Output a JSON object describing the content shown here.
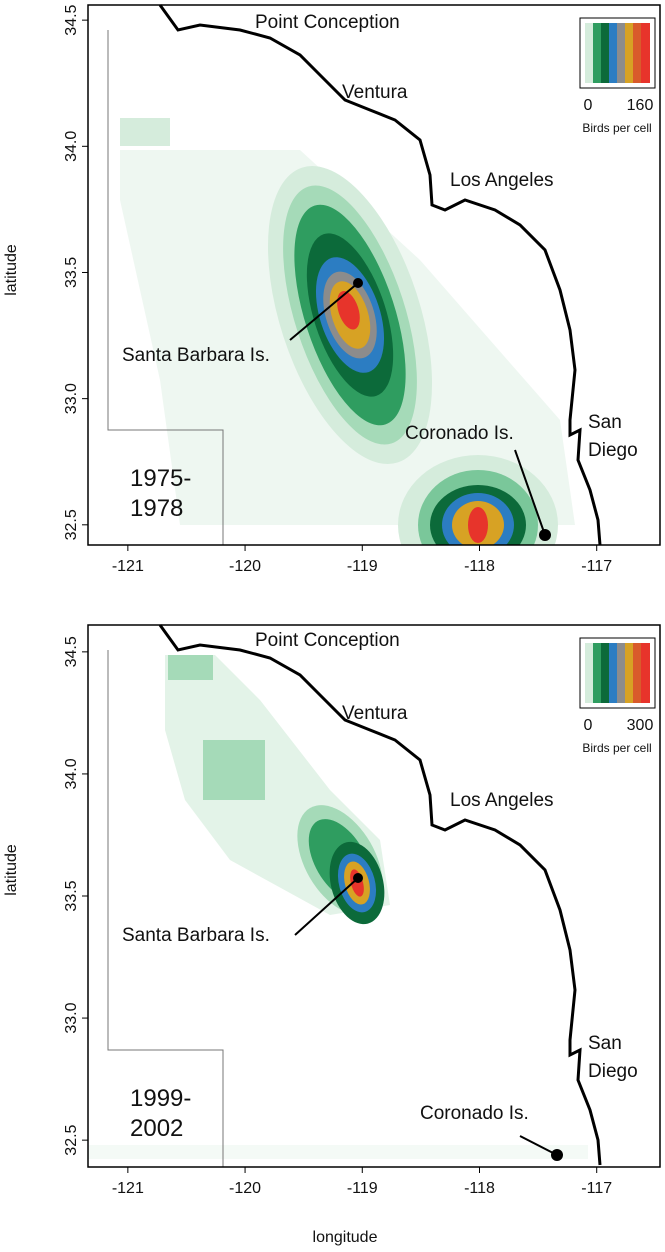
{
  "axes": {
    "x_label": "longitude",
    "y_label": "latitude"
  },
  "panels": [
    {
      "period": [
        "1975-",
        "1978"
      ],
      "xlim": [
        -121.34,
        -116.46
      ],
      "ylim": [
        32.42,
        34.56
      ],
      "xticks": [
        -121,
        -120,
        -119,
        -118,
        -117
      ],
      "yticks": [
        32.5,
        {
          "value": 33,
          "label": "33.0"
        },
        33.5,
        {
          "value": 34,
          "label": "34.0"
        },
        34.5
      ],
      "places": [
        "Point Conception",
        "Ventura",
        "Los Angeles",
        "Santa Barbara Is.",
        "Coronado Is."
      ],
      "san_diego": [
        "San",
        "Diego"
      ],
      "legend": {
        "ticks": [
          0,
          160
        ],
        "title": "Birds per cell"
      }
    },
    {
      "period": [
        "1999-",
        "2002"
      ],
      "xlim": [
        -121.34,
        -116.46
      ],
      "ylim": [
        32.39,
        34.61
      ],
      "xticks": [
        -121,
        -120,
        -119,
        -118,
        -117
      ],
      "yticks": [
        32.5,
        {
          "value": 33,
          "label": "33.0"
        },
        33.5,
        {
          "value": 34,
          "label": "34.0"
        },
        34.5
      ],
      "places": [
        "Point Conception",
        "Ventura",
        "Los Angeles",
        "Santa Barbara Is.",
        "Coronado Is."
      ],
      "san_diego": [
        "San",
        "Diego"
      ],
      "legend": {
        "ticks": [
          0,
          300
        ],
        "title": "Birds per cell"
      }
    }
  ]
}
